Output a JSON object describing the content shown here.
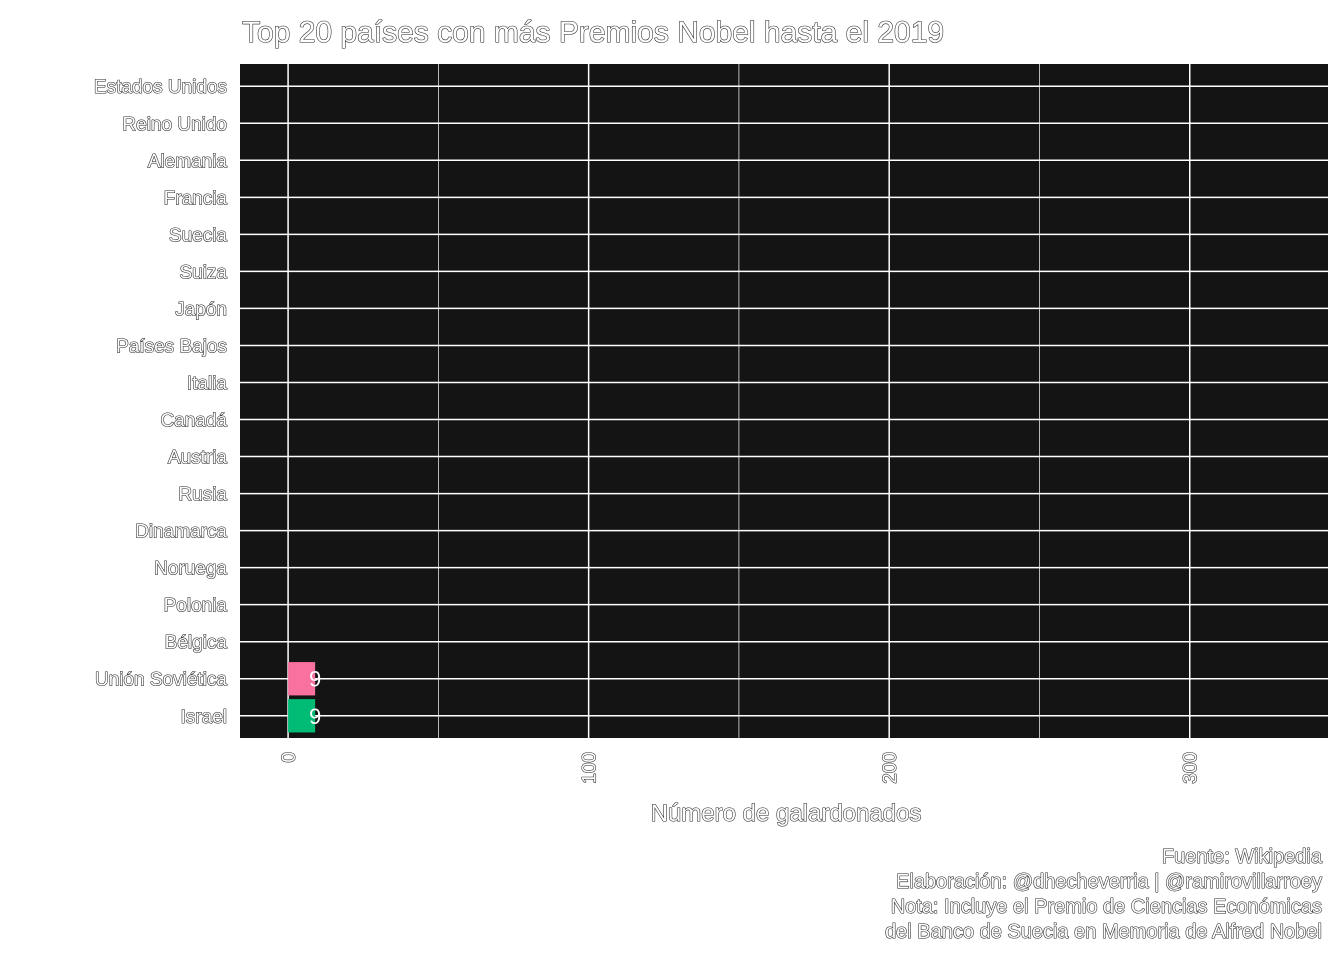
{
  "chart_data": {
    "type": "bar",
    "orientation": "horizontal",
    "title": "Top 20 países con más Premios Nobel hasta el 2019",
    "xlabel": "Número de galardonados",
    "ylabel": "",
    "xlim": [
      -16,
      346
    ],
    "xticks": [
      0,
      100,
      200,
      300
    ],
    "tick_labels": [
      "0",
      "100",
      "200",
      "300"
    ],
    "grid": true,
    "categories": [
      "Estados Unidos",
      "Reino Unido",
      "Alemania",
      "Francia",
      "Suecia",
      "Suiza",
      "Japón",
      "Países Bajos",
      "Italia",
      "Canadá",
      "Austria",
      "Rusia",
      "Dinamarca",
      "Noruega",
      "Polonia",
      "Bélgica",
      "Unión Soviética",
      "Israel"
    ],
    "bars": [
      {
        "category": "Unión Soviética",
        "value": 9,
        "label": "9",
        "color": "#f8719f"
      },
      {
        "category": "Israel",
        "value": 9,
        "label": "9",
        "color": "#00bb74"
      }
    ],
    "caption": [
      "Fuente: Wikipedia",
      "Elaboración: @dhecheverria | @ramirovillarroey",
      "Nota: Incluye el Premio de Ciencias Económicas",
      "del Banco de Suecia en Memoria de Alfred Nobel"
    ],
    "colors": {
      "panel_background": "#141414",
      "grid": "#ffffff",
      "text": "#ffffff"
    }
  }
}
